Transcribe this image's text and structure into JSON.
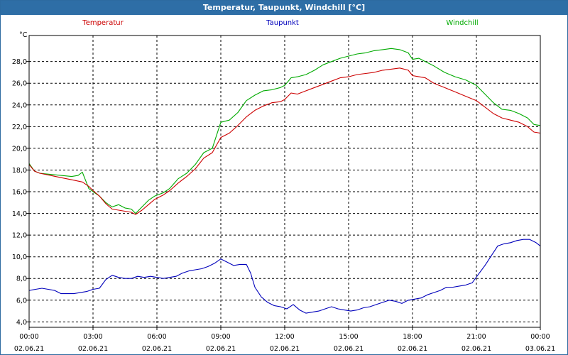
{
  "window": {
    "title": "Temperatur, Taupunkt, Windchill [°C]"
  },
  "chart_data": {
    "type": "line",
    "title": "Temperatur, Taupunkt, Windchill [°C]",
    "ylabel": "°C",
    "xlabel": "",
    "ylim": [
      3.5,
      30.4
    ],
    "xlim": [
      0,
      24
    ],
    "yticks": [
      "4,0",
      "6,0",
      "8,0",
      "10,0",
      "12,0",
      "14,0",
      "16,0",
      "18,0",
      "20,0",
      "22,0",
      "24,0",
      "26,0",
      "28,0"
    ],
    "ytick_values": [
      4,
      6,
      8,
      10,
      12,
      14,
      16,
      18,
      20,
      22,
      24,
      26,
      28
    ],
    "xticks": [
      {
        "value": 0,
        "time": "00:00",
        "date": "02.06.21"
      },
      {
        "value": 3,
        "time": "03:00",
        "date": "02.06.21"
      },
      {
        "value": 6,
        "time": "06:00",
        "date": "02.06.21"
      },
      {
        "value": 9,
        "time": "09:00",
        "date": "02.06.21"
      },
      {
        "value": 12,
        "time": "12:00",
        "date": "02.06.21"
      },
      {
        "value": 15,
        "time": "15:00",
        "date": "02.06.21"
      },
      {
        "value": 18,
        "time": "18:00",
        "date": "02.06.21"
      },
      {
        "value": 21,
        "time": "21:00",
        "date": "02.06.21"
      },
      {
        "value": 24,
        "time": "00:00",
        "date": "03.06.21"
      }
    ],
    "grid": true,
    "legend_placement": "top",
    "series": [
      {
        "name": "Temperatur",
        "color": "#cc0000",
        "points": [
          [
            0,
            18.5
          ],
          [
            0.25,
            17.9
          ],
          [
            0.5,
            17.7
          ],
          [
            1,
            17.5
          ],
          [
            1.5,
            17.3
          ],
          [
            2,
            17.1
          ],
          [
            2.5,
            16.9
          ],
          [
            2.8,
            16.5
          ],
          [
            3,
            16.1
          ],
          [
            3.3,
            15.6
          ],
          [
            3.6,
            14.9
          ],
          [
            3.9,
            14.4
          ],
          [
            4.2,
            14.3
          ],
          [
            4.5,
            14.2
          ],
          [
            4.8,
            14.1
          ],
          [
            5,
            13.9
          ],
          [
            5.3,
            14.3
          ],
          [
            5.6,
            14.8
          ],
          [
            5.9,
            15.3
          ],
          [
            6.3,
            15.7
          ],
          [
            6.6,
            16.1
          ],
          [
            7,
            16.8
          ],
          [
            7.4,
            17.4
          ],
          [
            7.8,
            18.1
          ],
          [
            8.2,
            19.1
          ],
          [
            8.6,
            19.6
          ],
          [
            9,
            21.0
          ],
          [
            9.4,
            21.4
          ],
          [
            9.8,
            22.1
          ],
          [
            10.2,
            22.9
          ],
          [
            10.6,
            23.5
          ],
          [
            11,
            23.9
          ],
          [
            11.4,
            24.2
          ],
          [
            11.8,
            24.3
          ],
          [
            12,
            24.5
          ],
          [
            12.3,
            25.1
          ],
          [
            12.6,
            25.0
          ],
          [
            13,
            25.3
          ],
          [
            13.4,
            25.6
          ],
          [
            13.8,
            25.9
          ],
          [
            14.2,
            26.2
          ],
          [
            14.6,
            26.5
          ],
          [
            15,
            26.6
          ],
          [
            15.4,
            26.8
          ],
          [
            15.8,
            26.9
          ],
          [
            16.2,
            27.0
          ],
          [
            16.6,
            27.2
          ],
          [
            17,
            27.3
          ],
          [
            17.4,
            27.4
          ],
          [
            17.8,
            27.2
          ],
          [
            18,
            26.7
          ],
          [
            18.3,
            26.6
          ],
          [
            18.6,
            26.5
          ],
          [
            19,
            26.0
          ],
          [
            19.5,
            25.6
          ],
          [
            20,
            25.2
          ],
          [
            20.5,
            24.8
          ],
          [
            21,
            24.4
          ],
          [
            21.4,
            23.8
          ],
          [
            21.8,
            23.2
          ],
          [
            22.2,
            22.8
          ],
          [
            22.6,
            22.6
          ],
          [
            23,
            22.4
          ],
          [
            23.4,
            22.0
          ],
          [
            23.7,
            21.5
          ],
          [
            24,
            21.4
          ]
        ]
      },
      {
        "name": "Taupunkt",
        "color": "#0000bb",
        "points": [
          [
            0,
            6.9
          ],
          [
            0.3,
            7.0
          ],
          [
            0.6,
            7.1
          ],
          [
            0.9,
            7.0
          ],
          [
            1.2,
            6.9
          ],
          [
            1.5,
            6.6
          ],
          [
            1.8,
            6.6
          ],
          [
            2.1,
            6.6
          ],
          [
            2.4,
            6.7
          ],
          [
            2.7,
            6.8
          ],
          [
            3,
            7.0
          ],
          [
            3.3,
            7.1
          ],
          [
            3.6,
            7.9
          ],
          [
            3.9,
            8.3
          ],
          [
            4.2,
            8.1
          ],
          [
            4.5,
            8.0
          ],
          [
            4.8,
            8.0
          ],
          [
            5.1,
            8.2
          ],
          [
            5.4,
            8.1
          ],
          [
            5.7,
            8.2
          ],
          [
            6,
            8.1
          ],
          [
            6.3,
            8.0
          ],
          [
            6.6,
            8.1
          ],
          [
            6.9,
            8.2
          ],
          [
            7.2,
            8.5
          ],
          [
            7.5,
            8.7
          ],
          [
            7.8,
            8.8
          ],
          [
            8.1,
            8.9
          ],
          [
            8.4,
            9.1
          ],
          [
            8.7,
            9.4
          ],
          [
            9,
            9.8
          ],
          [
            9.3,
            9.5
          ],
          [
            9.6,
            9.2
          ],
          [
            9.9,
            9.3
          ],
          [
            10.2,
            9.3
          ],
          [
            10.4,
            8.5
          ],
          [
            10.6,
            7.2
          ],
          [
            10.9,
            6.3
          ],
          [
            11.2,
            5.8
          ],
          [
            11.5,
            5.5
          ],
          [
            11.8,
            5.4
          ],
          [
            12.1,
            5.2
          ],
          [
            12.4,
            5.6
          ],
          [
            12.7,
            5.1
          ],
          [
            13,
            4.8
          ],
          [
            13.3,
            4.9
          ],
          [
            13.6,
            5.0
          ],
          [
            13.9,
            5.2
          ],
          [
            14.2,
            5.4
          ],
          [
            14.5,
            5.2
          ],
          [
            14.8,
            5.1
          ],
          [
            15.1,
            5.0
          ],
          [
            15.4,
            5.1
          ],
          [
            15.7,
            5.3
          ],
          [
            16,
            5.4
          ],
          [
            16.3,
            5.6
          ],
          [
            16.6,
            5.8
          ],
          [
            16.9,
            6.0
          ],
          [
            17.2,
            5.9
          ],
          [
            17.5,
            5.7
          ],
          [
            17.8,
            6.0
          ],
          [
            18.1,
            6.1
          ],
          [
            18.4,
            6.2
          ],
          [
            18.7,
            6.5
          ],
          [
            19,
            6.7
          ],
          [
            19.3,
            6.9
          ],
          [
            19.6,
            7.2
          ],
          [
            19.9,
            7.2
          ],
          [
            20.2,
            7.3
          ],
          [
            20.5,
            7.4
          ],
          [
            20.8,
            7.6
          ],
          [
            21.1,
            8.4
          ],
          [
            21.4,
            9.2
          ],
          [
            21.7,
            10.1
          ],
          [
            22,
            11.0
          ],
          [
            22.3,
            11.2
          ],
          [
            22.6,
            11.3
          ],
          [
            22.9,
            11.5
          ],
          [
            23.2,
            11.6
          ],
          [
            23.5,
            11.6
          ],
          [
            23.8,
            11.3
          ],
          [
            24,
            11.0
          ]
        ]
      },
      {
        "name": "Windchill",
        "color": "#00aa00",
        "points": [
          [
            0,
            18.6
          ],
          [
            0.25,
            17.9
          ],
          [
            0.5,
            17.7
          ],
          [
            1,
            17.6
          ],
          [
            1.5,
            17.5
          ],
          [
            2,
            17.4
          ],
          [
            2.3,
            17.5
          ],
          [
            2.5,
            17.8
          ],
          [
            2.8,
            16.3
          ],
          [
            3,
            16.0
          ],
          [
            3.3,
            15.6
          ],
          [
            3.6,
            15.0
          ],
          [
            3.9,
            14.6
          ],
          [
            4.2,
            14.8
          ],
          [
            4.5,
            14.5
          ],
          [
            4.8,
            14.4
          ],
          [
            5,
            14.0
          ],
          [
            5.3,
            14.6
          ],
          [
            5.6,
            15.2
          ],
          [
            5.9,
            15.6
          ],
          [
            6.3,
            15.9
          ],
          [
            6.6,
            16.3
          ],
          [
            7,
            17.2
          ],
          [
            7.4,
            17.7
          ],
          [
            7.8,
            18.5
          ],
          [
            8.2,
            19.6
          ],
          [
            8.6,
            20.0
          ],
          [
            9,
            22.4
          ],
          [
            9.4,
            22.6
          ],
          [
            9.8,
            23.3
          ],
          [
            10.2,
            24.4
          ],
          [
            10.6,
            24.9
          ],
          [
            11,
            25.3
          ],
          [
            11.4,
            25.4
          ],
          [
            11.8,
            25.6
          ],
          [
            12,
            25.8
          ],
          [
            12.3,
            26.5
          ],
          [
            12.6,
            26.6
          ],
          [
            13,
            26.8
          ],
          [
            13.4,
            27.2
          ],
          [
            13.8,
            27.7
          ],
          [
            14.2,
            28.0
          ],
          [
            14.6,
            28.3
          ],
          [
            15,
            28.5
          ],
          [
            15.4,
            28.7
          ],
          [
            15.8,
            28.8
          ],
          [
            16.2,
            29.0
          ],
          [
            16.6,
            29.1
          ],
          [
            17,
            29.2
          ],
          [
            17.4,
            29.1
          ],
          [
            17.8,
            28.8
          ],
          [
            18,
            28.2
          ],
          [
            18.3,
            28.3
          ],
          [
            18.6,
            28.0
          ],
          [
            19,
            27.6
          ],
          [
            19.5,
            27.0
          ],
          [
            20,
            26.6
          ],
          [
            20.5,
            26.3
          ],
          [
            21,
            25.8
          ],
          [
            21.4,
            25.0
          ],
          [
            21.8,
            24.2
          ],
          [
            22.2,
            23.6
          ],
          [
            22.6,
            23.5
          ],
          [
            23,
            23.2
          ],
          [
            23.4,
            22.8
          ],
          [
            23.7,
            22.2
          ],
          [
            24,
            22.1
          ]
        ]
      }
    ]
  }
}
